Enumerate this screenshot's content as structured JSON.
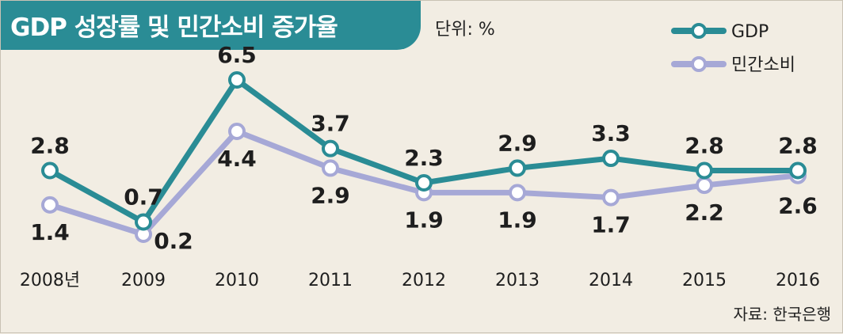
{
  "title": "GDP 성장률 및 민간소비 증가율",
  "unit": "단위: %",
  "source": "자료: 한국은행",
  "colors": {
    "gdp": "#2a8c95",
    "consumption": "#a6a8d6",
    "title_bg": "#2a8c95",
    "background": "#f2ede3"
  },
  "chart_data": {
    "type": "line",
    "title": "GDP 성장률 및 민간소비 증가율",
    "xlabel": "",
    "ylabel": "",
    "categories": [
      "2008년",
      "2009",
      "2010",
      "2011",
      "2012",
      "2013",
      "2014",
      "2015",
      "2016"
    ],
    "series": [
      {
        "name": "GDP",
        "values": [
          2.8,
          0.7,
          6.5,
          3.7,
          2.3,
          2.9,
          3.3,
          2.8,
          2.8
        ],
        "color": "#2a8c95"
      },
      {
        "name": "민간소비",
        "values": [
          1.4,
          0.2,
          4.4,
          2.9,
          1.9,
          1.9,
          1.7,
          2.2,
          2.6
        ],
        "color": "#a6a8d6"
      }
    ],
    "value_labels": {
      "GDP": [
        "2.8",
        "0.7",
        "6.5",
        "3.7",
        "2.3",
        "2.9",
        "3.3",
        "2.8",
        "2.8"
      ],
      "민간소비": [
        "1.4",
        "0.2",
        "4.4",
        "2.9",
        "1.9",
        "1.9",
        "1.7",
        "2.2",
        "2.6"
      ]
    },
    "ylim": [
      0,
      6.5
    ],
    "grid": false,
    "legend_placement": "top-right"
  }
}
